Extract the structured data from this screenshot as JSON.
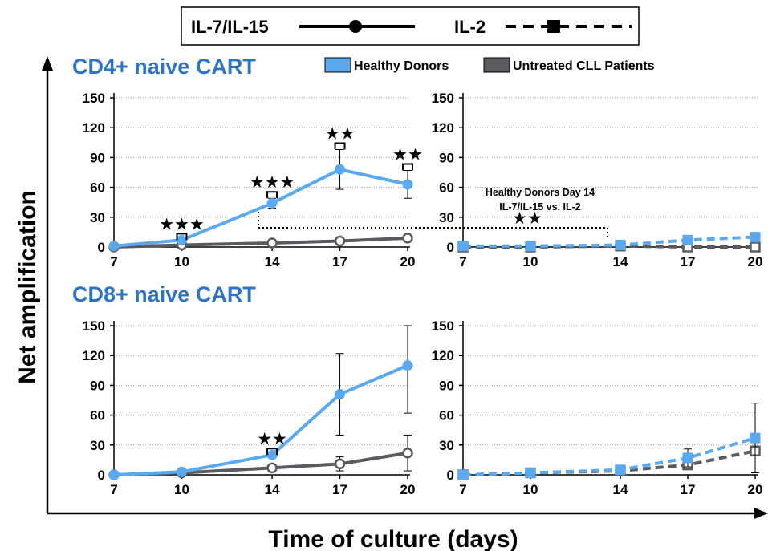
{
  "legend_top": {
    "solid": {
      "label": "IL-7/IL-15",
      "marker": "circle",
      "line": "solid"
    },
    "dashed": {
      "label": "IL-2",
      "marker": "square",
      "line": "dashed"
    }
  },
  "legend_groups": [
    {
      "label": "Healthy Donors",
      "color": "#5aa9ee"
    },
    {
      "label": "Untreated CLL Patients",
      "color": "#595b60"
    }
  ],
  "axis": {
    "ylabel": "Net amplification",
    "xlabel": "Time of culture (days)"
  },
  "annotation": {
    "line1": "Healthy Donors Day 14",
    "line2": "IL-7/IL-15 vs. IL-2",
    "stars": "★★"
  },
  "colors": {
    "healthy": "#5aa9ee",
    "cll": "#595b60",
    "title": "#2f74c4"
  },
  "chart_data": [
    {
      "type": "line",
      "title": "CD4+ naive CART",
      "condition": "IL-7/IL-15",
      "x": [
        7,
        10,
        14,
        17,
        20
      ],
      "xticks": [
        "7",
        "10",
        "14",
        "17",
        "20"
      ],
      "yticks": [
        "0",
        "30",
        "60",
        "90",
        "120",
        "150"
      ],
      "ylim": [
        0,
        150
      ],
      "grid": true,
      "series": [
        {
          "name": "Healthy Donors",
          "values": [
            1,
            7,
            44,
            78,
            63
          ],
          "err": [
            0,
            0,
            5,
            20,
            14
          ]
        },
        {
          "name": "Untreated CLL Patients",
          "values": [
            0,
            2,
            4,
            6,
            9
          ],
          "err": [
            0,
            0,
            0,
            0,
            2
          ]
        }
      ],
      "significance": [
        {
          "x": 10,
          "stars": "★★★"
        },
        {
          "x": 14,
          "stars": "★★★"
        },
        {
          "x": 17,
          "stars": "★★"
        },
        {
          "x": 20,
          "stars": "★★"
        }
      ]
    },
    {
      "type": "line",
      "title": "",
      "condition": "IL-2",
      "x": [
        7,
        10,
        14,
        17,
        20
      ],
      "xticks": [
        "7",
        "10",
        "14",
        "17",
        "20"
      ],
      "yticks": [
        "0",
        "30",
        "60",
        "90",
        "120",
        "150"
      ],
      "ylim": [
        0,
        150
      ],
      "grid": true,
      "series": [
        {
          "name": "Healthy Donors",
          "values": [
            1,
            1,
            2,
            7,
            10
          ],
          "err": [
            0,
            0,
            0,
            2,
            4
          ]
        },
        {
          "name": "Untreated CLL Patients",
          "values": [
            0,
            0,
            1,
            0,
            0
          ],
          "err": [
            0,
            0,
            0,
            0,
            0
          ]
        }
      ]
    },
    {
      "type": "line",
      "title": "CD8+ naive CART",
      "condition": "IL-7/IL-15",
      "x": [
        7,
        10,
        14,
        17,
        20
      ],
      "xticks": [
        "7",
        "10",
        "14",
        "17",
        "20"
      ],
      "yticks": [
        "0",
        "30",
        "60",
        "90",
        "120",
        "150"
      ],
      "ylim": [
        0,
        150
      ],
      "grid": true,
      "series": [
        {
          "name": "Healthy Donors",
          "values": [
            0,
            3,
            20,
            81,
            110
          ],
          "err": [
            0,
            0,
            0,
            41,
            48
          ]
        },
        {
          "name": "Untreated CLL Patients",
          "values": [
            0,
            2,
            7,
            11,
            22
          ],
          "err": [
            0,
            0,
            0,
            7,
            18
          ]
        }
      ],
      "significance": [
        {
          "x": 14,
          "stars": "★★"
        }
      ]
    },
    {
      "type": "line",
      "title": "",
      "condition": "IL-2",
      "x": [
        7,
        10,
        14,
        17,
        20
      ],
      "xticks": [
        "7",
        "10",
        "14",
        "17",
        "20"
      ],
      "yticks": [
        "0",
        "30",
        "60",
        "90",
        "120",
        "150"
      ],
      "ylim": [
        0,
        150
      ],
      "grid": true,
      "series": [
        {
          "name": "Healthy Donors",
          "values": [
            0,
            2,
            5,
            17,
            37
          ],
          "err": [
            0,
            0,
            0,
            9,
            35
          ]
        },
        {
          "name": "Untreated CLL Patients",
          "values": [
            0,
            2,
            4,
            10,
            24
          ],
          "err": [
            0,
            3,
            0,
            0,
            0
          ]
        }
      ]
    }
  ]
}
